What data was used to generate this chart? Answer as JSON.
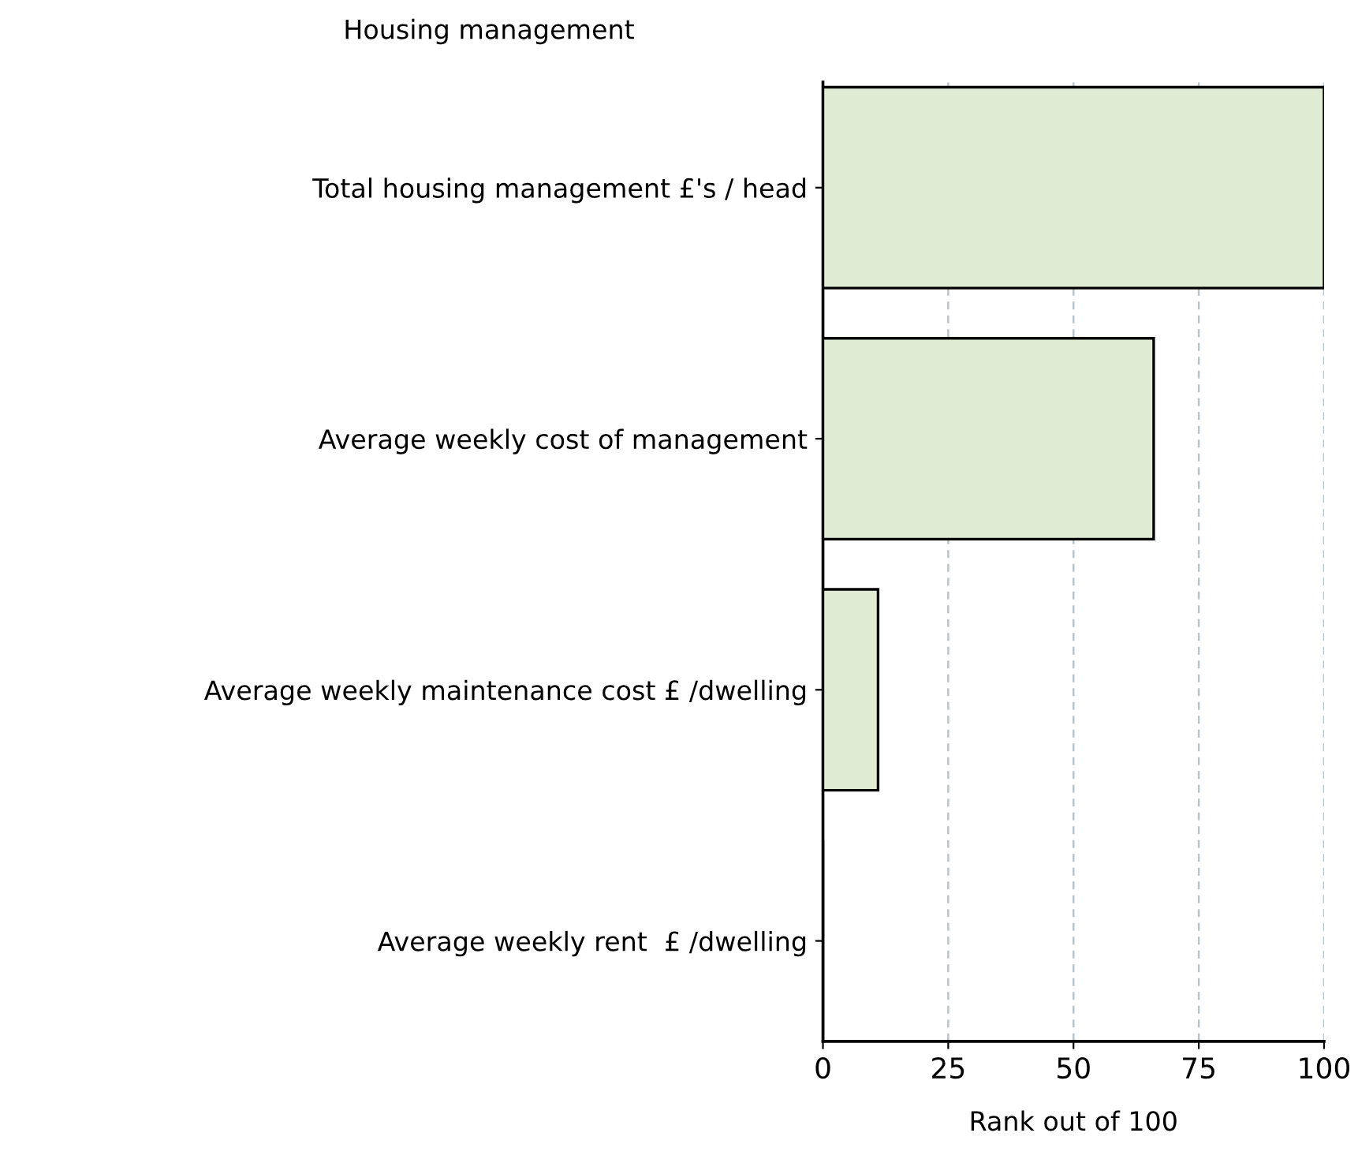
{
  "chart_data": {
    "type": "bar",
    "orientation": "horizontal",
    "title": "Housing management",
    "xlabel": "Rank out of 100",
    "categories": [
      "Total housing management £'s / head",
      "Average weekly cost of management",
      "Average weekly maintenance cost £ /dwelling",
      "Average weekly rent  £ /dwelling"
    ],
    "values": [
      100,
      66,
      11,
      0
    ],
    "color": "#e0ebd4",
    "xlim": [
      0,
      100
    ],
    "xticks": [
      0,
      25,
      50,
      75,
      100
    ],
    "grid": "x"
  }
}
